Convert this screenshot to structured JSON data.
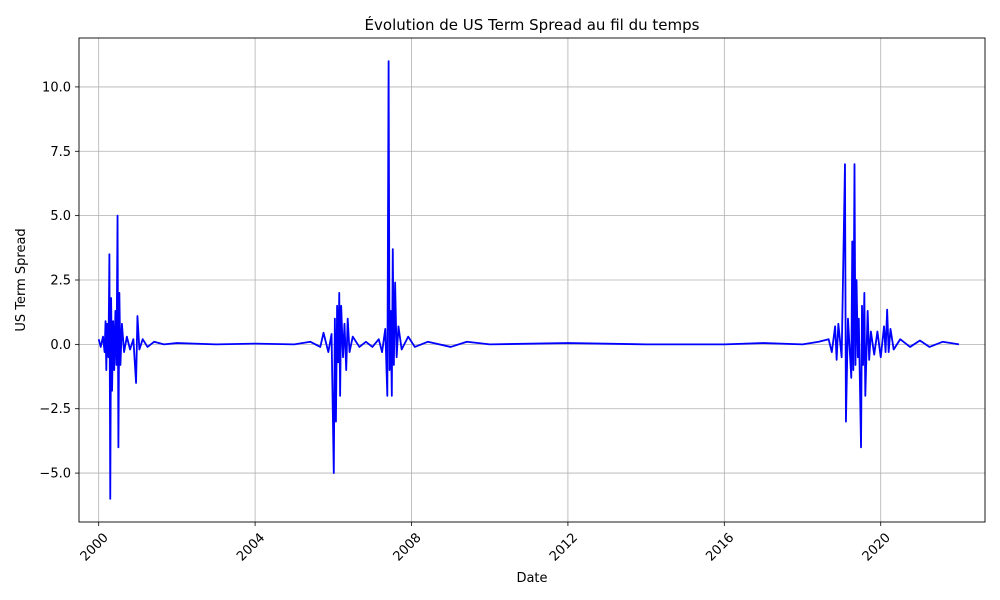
{
  "chart_data": {
    "type": "line",
    "title": "Évolution de US Term Spread au fil du temps",
    "xlabel": "Date",
    "ylabel": "US Term Spread",
    "xlim": [
      "1999-07-01",
      "2022-09-01"
    ],
    "ylim": [
      -6.9,
      11.9
    ],
    "x_ticks": [
      "2000",
      "2004",
      "2008",
      "2012",
      "2016",
      "2020"
    ],
    "x_tick_dates": [
      "2000-01-01",
      "2004-01-01",
      "2008-01-01",
      "2012-01-01",
      "2016-01-01",
      "2020-01-01"
    ],
    "y_ticks": [
      "−5.0",
      "−2.5",
      "0.0",
      "2.5",
      "5.0",
      "7.5",
      "10.0"
    ],
    "y_tick_values": [
      -5.0,
      -2.5,
      0.0,
      2.5,
      5.0,
      7.5,
      10.0
    ],
    "grid": true,
    "line_color": "#0000ff",
    "series": [
      {
        "points": [
          [
            "2000-01-01",
            0.2
          ],
          [
            "2000-01-20",
            -0.1
          ],
          [
            "2000-02-10",
            0.3
          ],
          [
            "2000-02-25",
            -0.3
          ],
          [
            "2000-03-05",
            0.9
          ],
          [
            "2000-03-12",
            -1.0
          ],
          [
            "2000-03-20",
            0.8
          ],
          [
            "2000-04-01",
            -0.5
          ],
          [
            "2000-04-10",
            3.5
          ],
          [
            "2000-04-18",
            -6.0
          ],
          [
            "2000-04-26",
            1.8
          ],
          [
            "2000-05-05",
            -1.8
          ],
          [
            "2000-05-15",
            0.9
          ],
          [
            "2000-05-25",
            -1.0
          ],
          [
            "2000-06-05",
            1.3
          ],
          [
            "2000-06-15",
            -0.8
          ],
          [
            "2000-06-25",
            5.0
          ],
          [
            "2000-07-03",
            -4.0
          ],
          [
            "2000-07-12",
            2.0
          ],
          [
            "2000-07-22",
            -0.8
          ],
          [
            "2000-08-05",
            0.8
          ],
          [
            "2000-08-25",
            -0.3
          ],
          [
            "2000-09-20",
            0.3
          ],
          [
            "2000-10-20",
            -0.2
          ],
          [
            "2000-11-20",
            0.2
          ],
          [
            "2000-12-15",
            -1.5
          ],
          [
            "2000-12-28",
            1.1
          ],
          [
            "2001-01-15",
            -0.2
          ],
          [
            "2001-02-15",
            0.2
          ],
          [
            "2001-04-01",
            -0.1
          ],
          [
            "2001-06-01",
            0.1
          ],
          [
            "2001-09-01",
            0.0
          ],
          [
            "2002-01-01",
            0.05
          ],
          [
            "2003-01-01",
            0.0
          ],
          [
            "2004-01-01",
            0.03
          ],
          [
            "2005-01-01",
            0.0
          ],
          [
            "2005-06-01",
            0.1
          ],
          [
            "2005-09-01",
            -0.1
          ],
          [
            "2005-10-01",
            0.45
          ],
          [
            "2005-11-15",
            -0.3
          ],
          [
            "2005-12-15",
            0.4
          ],
          [
            "2006-01-05",
            -5.0
          ],
          [
            "2006-01-15",
            1.0
          ],
          [
            "2006-01-25",
            -3.0
          ],
          [
            "2006-02-05",
            1.5
          ],
          [
            "2006-02-15",
            -0.7
          ],
          [
            "2006-02-25",
            2.0
          ],
          [
            "2006-03-05",
            -2.0
          ],
          [
            "2006-03-15",
            1.5
          ],
          [
            "2006-04-01",
            -0.5
          ],
          [
            "2006-04-15",
            0.8
          ],
          [
            "2006-05-01",
            -1.0
          ],
          [
            "2006-05-15",
            1.0
          ],
          [
            "2006-06-01",
            -0.3
          ],
          [
            "2006-07-01",
            0.3
          ],
          [
            "2006-09-01",
            -0.1
          ],
          [
            "2006-11-01",
            0.1
          ],
          [
            "2007-01-01",
            -0.1
          ],
          [
            "2007-03-01",
            0.2
          ],
          [
            "2007-04-01",
            -0.3
          ],
          [
            "2007-05-01",
            0.6
          ],
          [
            "2007-05-20",
            -2.0
          ],
          [
            "2007-06-01",
            11.0
          ],
          [
            "2007-06-10",
            -1.0
          ],
          [
            "2007-06-20",
            1.3
          ],
          [
            "2007-07-01",
            -2.0
          ],
          [
            "2007-07-10",
            3.7
          ],
          [
            "2007-07-20",
            -0.8
          ],
          [
            "2007-08-01",
            2.4
          ],
          [
            "2007-08-15",
            -0.5
          ],
          [
            "2007-09-01",
            0.7
          ],
          [
            "2007-10-01",
            -0.2
          ],
          [
            "2007-12-01",
            0.3
          ],
          [
            "2008-02-01",
            -0.1
          ],
          [
            "2008-06-01",
            0.1
          ],
          [
            "2009-01-01",
            -0.1
          ],
          [
            "2009-06-01",
            0.1
          ],
          [
            "2010-01-01",
            0.0
          ],
          [
            "2012-01-01",
            0.05
          ],
          [
            "2014-01-01",
            0.0
          ],
          [
            "2016-01-01",
            0.0
          ],
          [
            "2017-01-01",
            0.05
          ],
          [
            "2018-01-01",
            0.0
          ],
          [
            "2018-06-01",
            0.1
          ],
          [
            "2018-09-01",
            0.2
          ],
          [
            "2018-10-01",
            -0.3
          ],
          [
            "2018-11-01",
            0.7
          ],
          [
            "2018-11-15",
            -0.6
          ],
          [
            "2018-12-01",
            0.8
          ],
          [
            "2019-01-01",
            -0.5
          ],
          [
            "2019-02-01",
            7.0
          ],
          [
            "2019-02-10",
            -3.0
          ],
          [
            "2019-03-01",
            1.0
          ],
          [
            "2019-04-01",
            -1.3
          ],
          [
            "2019-04-10",
            4.0
          ],
          [
            "2019-04-20",
            -1.0
          ],
          [
            "2019-05-01",
            7.0
          ],
          [
            "2019-05-10",
            -0.8
          ],
          [
            "2019-05-20",
            2.5
          ],
          [
            "2019-06-01",
            -0.5
          ],
          [
            "2019-06-10",
            1.0
          ],
          [
            "2019-07-01",
            -4.0
          ],
          [
            "2019-07-10",
            1.5
          ],
          [
            "2019-07-20",
            -0.8
          ],
          [
            "2019-08-01",
            2.0
          ],
          [
            "2019-08-10",
            -2.0
          ],
          [
            "2019-09-01",
            1.3
          ],
          [
            "2019-09-15",
            -0.6
          ],
          [
            "2019-10-01",
            0.5
          ],
          [
            "2019-11-01",
            -0.4
          ],
          [
            "2019-12-01",
            0.5
          ],
          [
            "2020-01-01",
            -0.5
          ],
          [
            "2020-02-01",
            0.7
          ],
          [
            "2020-02-15",
            -0.3
          ],
          [
            "2020-03-01",
            1.35
          ],
          [
            "2020-03-15",
            -0.3
          ],
          [
            "2020-04-01",
            0.6
          ],
          [
            "2020-05-01",
            -0.2
          ],
          [
            "2020-07-01",
            0.2
          ],
          [
            "2020-10-01",
            -0.1
          ],
          [
            "2021-01-01",
            0.15
          ],
          [
            "2021-04-01",
            -0.1
          ],
          [
            "2021-08-01",
            0.1
          ],
          [
            "2022-01-01",
            0.0
          ]
        ]
      }
    ]
  }
}
